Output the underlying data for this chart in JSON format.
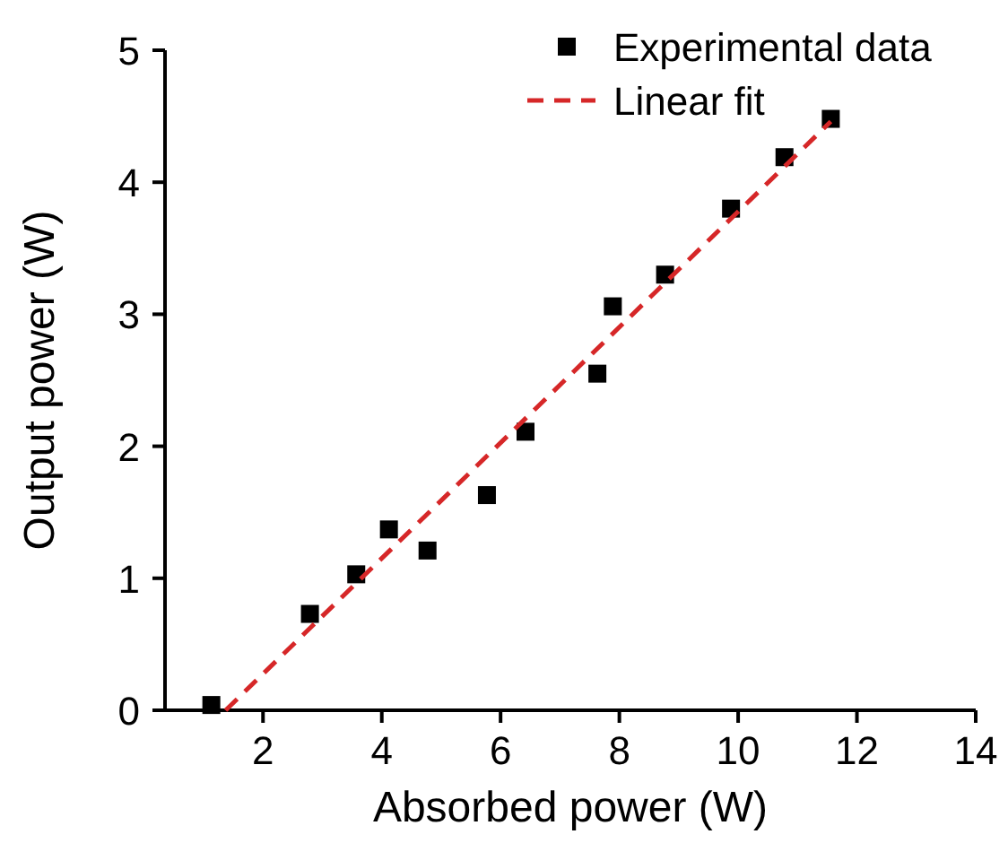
{
  "chart_data": {
    "type": "scatter",
    "xlabel": "Absorbed power (W)",
    "ylabel": "Output power (W)",
    "xlim": [
      0.35,
      14
    ],
    "ylim": [
      0,
      5
    ],
    "xticks": [
      2,
      4,
      6,
      8,
      10,
      12,
      14
    ],
    "yticks": [
      0,
      1,
      2,
      3,
      4,
      5
    ],
    "grid": false,
    "legend": "top right",
    "series": [
      {
        "name": "Experimental data",
        "marker": "square",
        "color": "#000000",
        "x": [
          1.13,
          2.79,
          3.57,
          4.12,
          4.77,
          5.77,
          6.42,
          7.63,
          7.89,
          8.77,
          9.88,
          10.78,
          11.56
        ],
        "values": [
          0.04,
          0.73,
          1.03,
          1.37,
          1.21,
          1.63,
          2.11,
          2.55,
          3.06,
          3.3,
          3.8,
          4.19,
          4.48
        ]
      },
      {
        "name": "Linear fit",
        "type": "line",
        "line_style": "dashed",
        "marker": "none",
        "color": "#d62728",
        "x": [
          1.37,
          11.56
        ],
        "values": [
          0,
          4.46
        ]
      }
    ]
  }
}
